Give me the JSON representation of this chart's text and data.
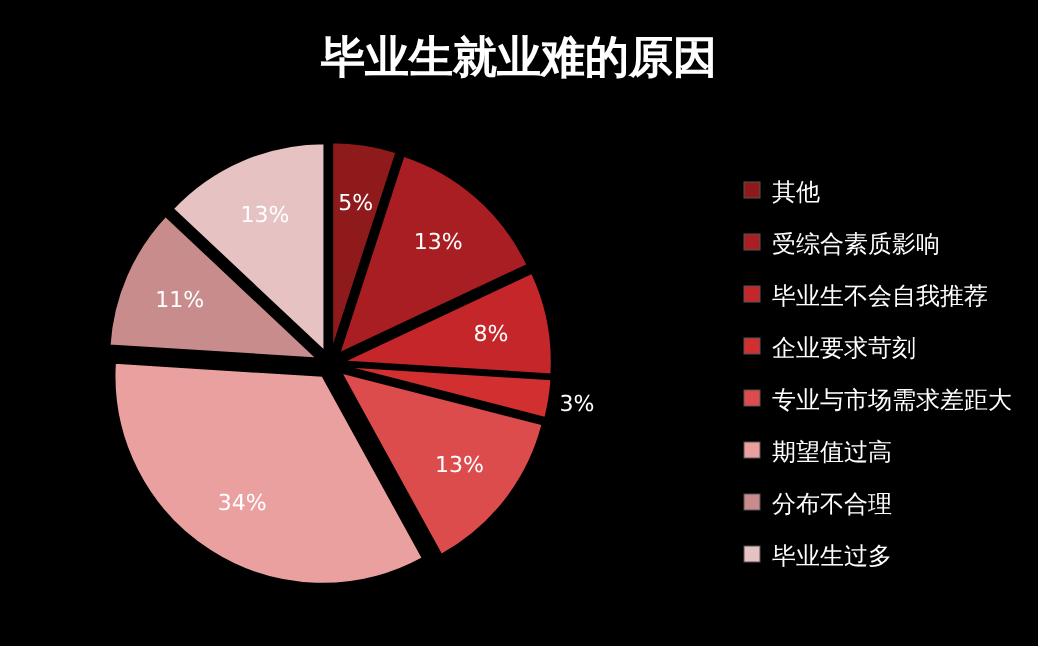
{
  "chart_data": {
    "type": "pie",
    "title": "毕业生就业难的原因",
    "categories": [
      "其他",
      "受综合素质影响",
      "毕业生不会自我推荐",
      "企业要求苛刻",
      "专业与市场需求差距大",
      "期望值过高",
      "分布不合理",
      "毕业生过多"
    ],
    "values": [
      5,
      13,
      8,
      3,
      13,
      34,
      11,
      13
    ],
    "value_labels": [
      "5%",
      "13%",
      "8%",
      "3%",
      "13%",
      "34%",
      "11%",
      "13%"
    ],
    "colors": [
      "#8e1a1c",
      "#a81e22",
      "#c4262a",
      "#d23030",
      "#dc4c4c",
      "#eba0a0",
      "#c98c8c",
      "#e6c2c2"
    ],
    "legend": "right"
  }
}
